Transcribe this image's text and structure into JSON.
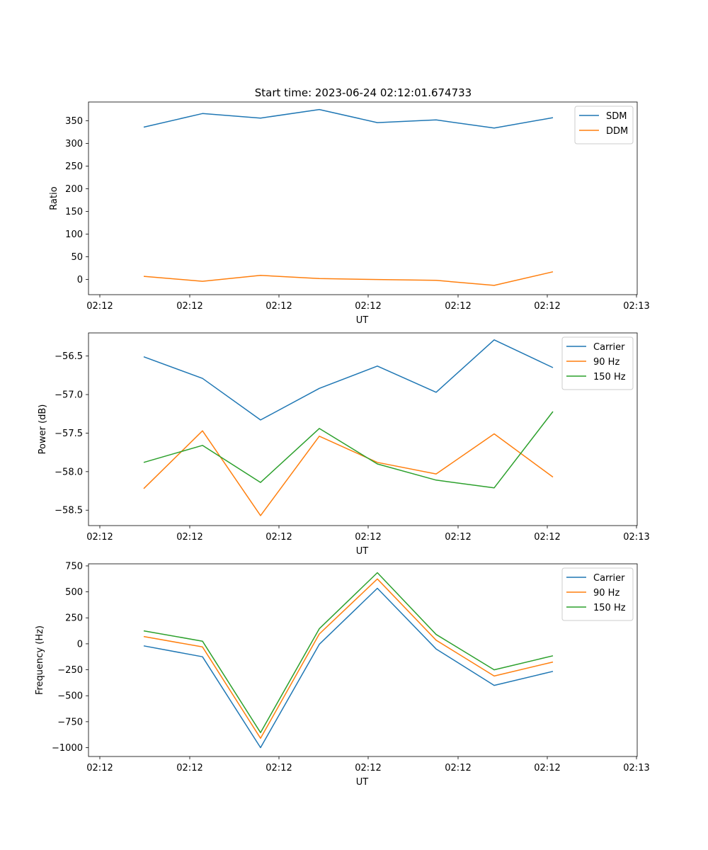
{
  "figure": {
    "title": "Start time: 2023-06-24 02:12:01.674733"
  },
  "chart_data": [
    {
      "type": "line",
      "xlabel": "UT",
      "ylabel": "Ratio",
      "x_tick_labels": [
        "02:12",
        "02:12",
        "02:12",
        "02:12",
        "02:12",
        "02:12",
        "02:13"
      ],
      "x_points": 8,
      "yticks": [
        0,
        50,
        100,
        150,
        200,
        250,
        300,
        350
      ],
      "ylim": [
        -33.5,
        391.5
      ],
      "legend_loc": "top-right",
      "series": [
        {
          "name": "SDM",
          "color": "#1f77b4",
          "values": [
            336,
            366,
            356,
            375,
            346,
            352,
            334,
            357
          ]
        },
        {
          "name": "DDM",
          "color": "#ff7f0e",
          "values": [
            7,
            -4,
            9,
            2,
            0,
            -2,
            -13,
            17
          ]
        }
      ]
    },
    {
      "type": "line",
      "xlabel": "UT",
      "ylabel": "Power (dB)",
      "x_tick_labels": [
        "02:12",
        "02:12",
        "02:12",
        "02:12",
        "02:12",
        "02:12",
        "02:13"
      ],
      "x_points": 8,
      "yticks": [
        -58.5,
        -58.0,
        -57.5,
        -57.0,
        -56.5
      ],
      "ytick_labels": [
        "−58.5",
        "−58.0",
        "−57.5",
        "−57.0",
        "−56.5"
      ],
      "ylim": [
        -58.7,
        -56.2
      ],
      "legend_loc": "top-right",
      "series": [
        {
          "name": "Carrier",
          "color": "#1f77b4",
          "values": [
            -56.51,
            -56.79,
            -57.33,
            -56.92,
            -56.63,
            -56.97,
            -56.29,
            -56.65
          ]
        },
        {
          "name": "90 Hz",
          "color": "#ff7f0e",
          "values": [
            -58.22,
            -57.47,
            -58.57,
            -57.54,
            -57.88,
            -58.03,
            -57.51,
            -58.07
          ]
        },
        {
          "name": "150 Hz",
          "color": "#2ca02c",
          "values": [
            -57.88,
            -57.66,
            -58.14,
            -57.44,
            -57.9,
            -58.11,
            -58.21,
            -57.22
          ]
        }
      ]
    },
    {
      "type": "line",
      "xlabel": "UT",
      "ylabel": "Frequency (Hz)",
      "x_tick_labels": [
        "02:12",
        "02:12",
        "02:12",
        "02:12",
        "02:12",
        "02:12",
        "02:13"
      ],
      "x_points": 8,
      "yticks": [
        -1000,
        -750,
        -500,
        -250,
        0,
        250,
        500,
        750
      ],
      "ytick_labels": [
        "−1000",
        "−750",
        "−500",
        "−250",
        "0",
        "250",
        "500",
        "750"
      ],
      "ylim": [
        -1085,
        770
      ],
      "legend_loc": "top-right",
      "series": [
        {
          "name": "Carrier",
          "color": "#1f77b4",
          "values": [
            -20,
            -125,
            -1000,
            -5,
            535,
            -50,
            -400,
            -265
          ]
        },
        {
          "name": "90 Hz",
          "color": "#ff7f0e",
          "values": [
            70,
            -30,
            -910,
            95,
            625,
            35,
            -310,
            -175
          ]
        },
        {
          "name": "150 Hz",
          "color": "#2ca02c",
          "values": [
            125,
            25,
            -855,
            145,
            685,
            90,
            -250,
            -115
          ]
        }
      ]
    }
  ]
}
